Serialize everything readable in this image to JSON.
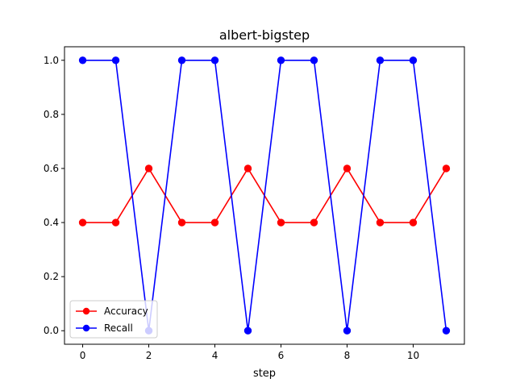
{
  "chart_data": {
    "type": "line",
    "title": "albert-bigstep",
    "xlabel": "step",
    "ylabel": "",
    "x": [
      0,
      1,
      2,
      3,
      4,
      5,
      6,
      7,
      8,
      9,
      10,
      11
    ],
    "xlim": [
      -0.55,
      11.55
    ],
    "ylim": [
      -0.05,
      1.05
    ],
    "xticks": [
      0,
      2,
      4,
      6,
      8,
      10
    ],
    "yticks": [
      0.0,
      0.2,
      0.4,
      0.6,
      0.8,
      1.0
    ],
    "xtick_labels": [
      "0",
      "2",
      "4",
      "6",
      "8",
      "10"
    ],
    "ytick_labels": [
      "0.0",
      "0.2",
      "0.4",
      "0.6",
      "0.8",
      "1.0"
    ],
    "grid": false,
    "legend_position": "bottom-left",
    "series": [
      {
        "name": "Accuracy",
        "color": "#ff0000",
        "marker": "circle",
        "values": [
          0.4,
          0.4,
          0.6,
          0.4,
          0.4,
          0.6,
          0.4,
          0.4,
          0.6,
          0.4,
          0.4,
          0.6
        ]
      },
      {
        "name": "Recall",
        "color": "#0000ff",
        "marker": "circle",
        "values": [
          1.0,
          1.0,
          0.0,
          1.0,
          1.0,
          0.0,
          1.0,
          1.0,
          0.0,
          1.0,
          1.0,
          0.0
        ]
      }
    ]
  }
}
